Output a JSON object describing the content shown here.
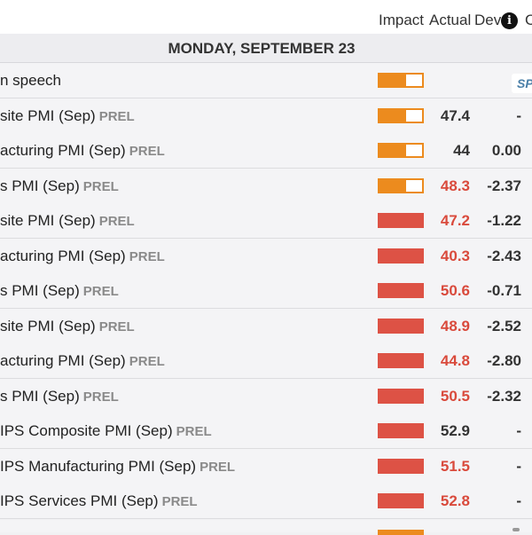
{
  "header": {
    "impact": "Impact",
    "actual": "Actual",
    "dev": "Dev",
    "cut_col": "C",
    "info_icon": "info-icon"
  },
  "date_label": "MONDAY, SEPTEMBER 23",
  "prel_label": "PREL",
  "speech_badge": "SP",
  "colors": {
    "high": "#dd5245",
    "medium": "#ec8b1e",
    "actual_red": "#d94a3c"
  },
  "rows": [
    {
      "event": "n speech",
      "prel": false,
      "impact": "medium",
      "actual": "",
      "actual_red": false,
      "dev": ""
    },
    {
      "event": "site PMI (Sep)",
      "prel": true,
      "impact": "medium",
      "actual": "47.4",
      "actual_red": false,
      "dev": "-"
    },
    {
      "event": "acturing PMI (Sep)",
      "prel": true,
      "impact": "medium",
      "actual": "44",
      "actual_red": false,
      "dev": "0.00"
    },
    {
      "event": "s PMI (Sep)",
      "prel": true,
      "impact": "medium",
      "actual": "48.3",
      "actual_red": true,
      "dev": "-2.37"
    },
    {
      "event": "site PMI (Sep)",
      "prel": true,
      "impact": "high",
      "actual": "47.2",
      "actual_red": true,
      "dev": "-1.22"
    },
    {
      "event": "acturing PMI (Sep)",
      "prel": true,
      "impact": "high",
      "actual": "40.3",
      "actual_red": true,
      "dev": "-2.43"
    },
    {
      "event": "s PMI (Sep)",
      "prel": true,
      "impact": "high",
      "actual": "50.6",
      "actual_red": true,
      "dev": "-0.71"
    },
    {
      "event": "site PMI (Sep)",
      "prel": true,
      "impact": "high",
      "actual": "48.9",
      "actual_red": true,
      "dev": "-2.52"
    },
    {
      "event": "acturing PMI (Sep)",
      "prel": true,
      "impact": "high",
      "actual": "44.8",
      "actual_red": true,
      "dev": "-2.80"
    },
    {
      "event": "s PMI (Sep)",
      "prel": true,
      "impact": "high",
      "actual": "50.5",
      "actual_red": true,
      "dev": "-2.32"
    },
    {
      "event": "IPS Composite PMI (Sep)",
      "prel": true,
      "impact": "high",
      "actual": "52.9",
      "actual_red": false,
      "dev": "-"
    },
    {
      "event": "IPS Manufacturing PMI (Sep)",
      "prel": true,
      "impact": "high",
      "actual": "51.5",
      "actual_red": true,
      "dev": "-"
    },
    {
      "event": "IPS Services PMI (Sep)",
      "prel": true,
      "impact": "high",
      "actual": "52.8",
      "actual_red": true,
      "dev": "-"
    }
  ]
}
